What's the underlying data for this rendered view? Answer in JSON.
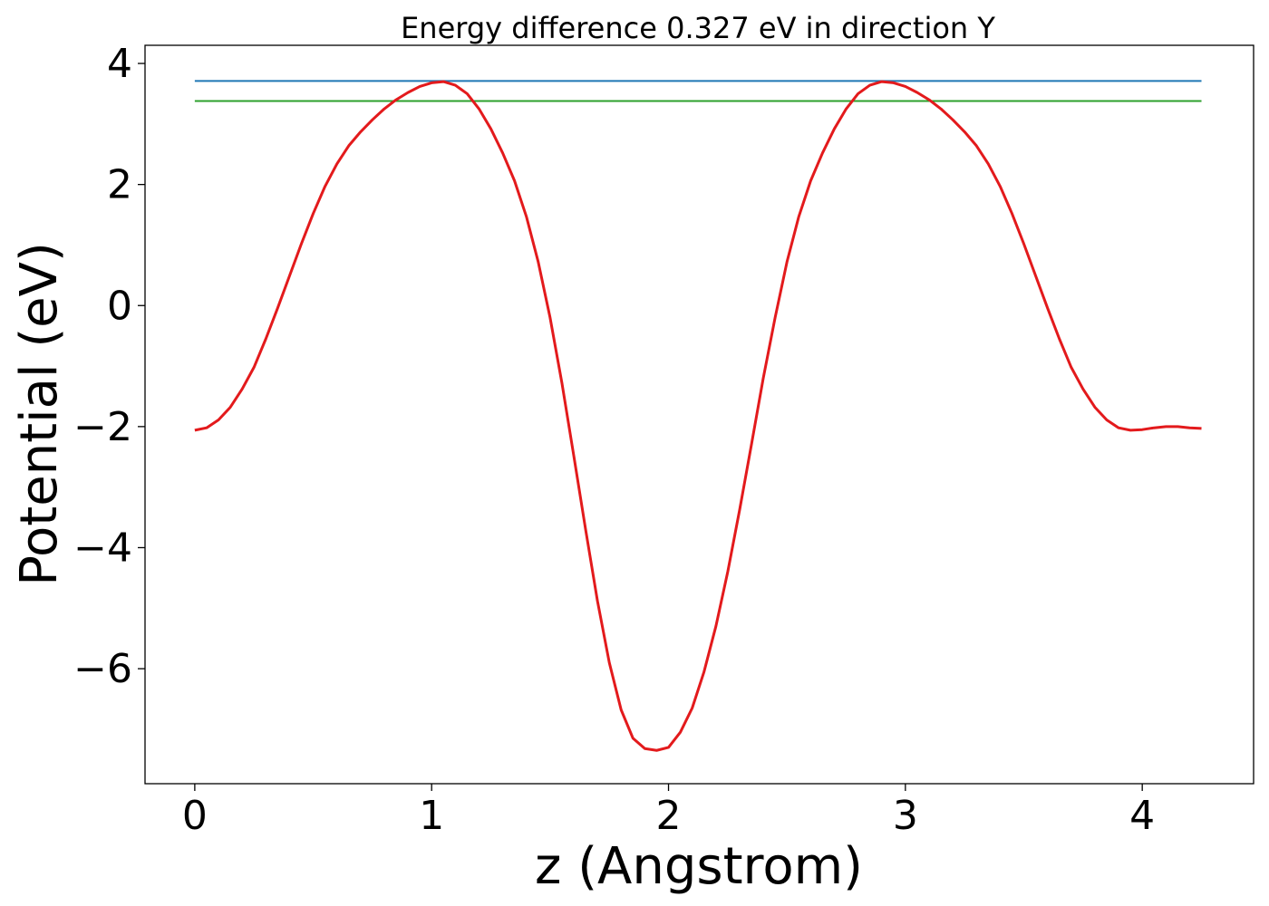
{
  "chart_data": {
    "type": "line",
    "title": "Energy difference 0.327 eV in direction Y",
    "xlabel": "z (Angstrom)",
    "ylabel": "Potential (eV)",
    "xlim": [
      -0.21,
      4.47
    ],
    "ylim": [
      -7.9,
      4.3
    ],
    "xticks": [
      0,
      1,
      2,
      3,
      4
    ],
    "xtick_labels": [
      "0",
      "1",
      "2",
      "3",
      "4"
    ],
    "yticks": [
      -6,
      -4,
      -2,
      0,
      2,
      4
    ],
    "ytick_labels": [
      "−6",
      "−4",
      "−2",
      "0",
      "2",
      "4"
    ],
    "grid": false,
    "series": [
      {
        "color": "#1f77b4",
        "x": [
          0,
          4.25
        ],
        "y": [
          3.71,
          3.71
        ]
      },
      {
        "color": "#2ca02c",
        "x": [
          0,
          4.25
        ],
        "y": [
          3.38,
          3.38
        ]
      },
      {
        "color": "#e31a1c",
        "x": [
          0,
          0.05,
          0.1,
          0.15,
          0.2,
          0.25,
          0.3,
          0.35,
          0.4,
          0.45,
          0.5,
          0.55,
          0.6,
          0.65,
          0.7,
          0.75,
          0.8,
          0.85,
          0.9,
          0.95,
          1.0,
          1.05,
          1.1,
          1.15,
          1.2,
          1.25,
          1.3,
          1.35,
          1.4,
          1.45,
          1.5,
          1.55,
          1.6,
          1.65,
          1.7,
          1.75,
          1.8,
          1.85,
          1.9,
          1.95,
          2.0,
          2.05,
          2.1,
          2.15,
          2.2,
          2.25,
          2.3,
          2.35,
          2.4,
          2.45,
          2.5,
          2.55,
          2.6,
          2.65,
          2.7,
          2.75,
          2.8,
          2.85,
          2.9,
          2.95,
          3.0,
          3.05,
          3.1,
          3.15,
          3.2,
          3.25,
          3.3,
          3.35,
          3.4,
          3.45,
          3.5,
          3.55,
          3.6,
          3.65,
          3.7,
          3.75,
          3.8,
          3.85,
          3.9,
          3.95,
          4.0,
          4.05,
          4.1,
          4.15,
          4.2,
          4.25
        ],
        "y": [
          -2.06,
          -2.02,
          -1.89,
          -1.68,
          -1.38,
          -1.02,
          -0.55,
          -0.04,
          0.49,
          1.02,
          1.52,
          1.97,
          2.34,
          2.64,
          2.87,
          3.07,
          3.25,
          3.4,
          3.52,
          3.62,
          3.68,
          3.7,
          3.64,
          3.5,
          3.25,
          2.92,
          2.52,
          2.06,
          1.47,
          0.72,
          -0.2,
          -1.28,
          -2.48,
          -3.7,
          -4.88,
          -5.9,
          -6.68,
          -7.15,
          -7.32,
          -7.35,
          -7.3,
          -7.05,
          -6.65,
          -6.05,
          -5.3,
          -4.4,
          -3.38,
          -2.3,
          -1.2,
          -0.2,
          0.72,
          1.47,
          2.06,
          2.52,
          2.92,
          3.25,
          3.5,
          3.64,
          3.7,
          3.68,
          3.62,
          3.52,
          3.4,
          3.25,
          3.07,
          2.87,
          2.64,
          2.34,
          1.97,
          1.52,
          1.02,
          0.49,
          -0.04,
          -0.55,
          -1.02,
          -1.38,
          -1.68,
          -1.89,
          -2.02,
          -2.06,
          -2.05,
          -2.02,
          -2.0,
          -2.0,
          -2.02,
          -2.03
        ]
      }
    ]
  }
}
